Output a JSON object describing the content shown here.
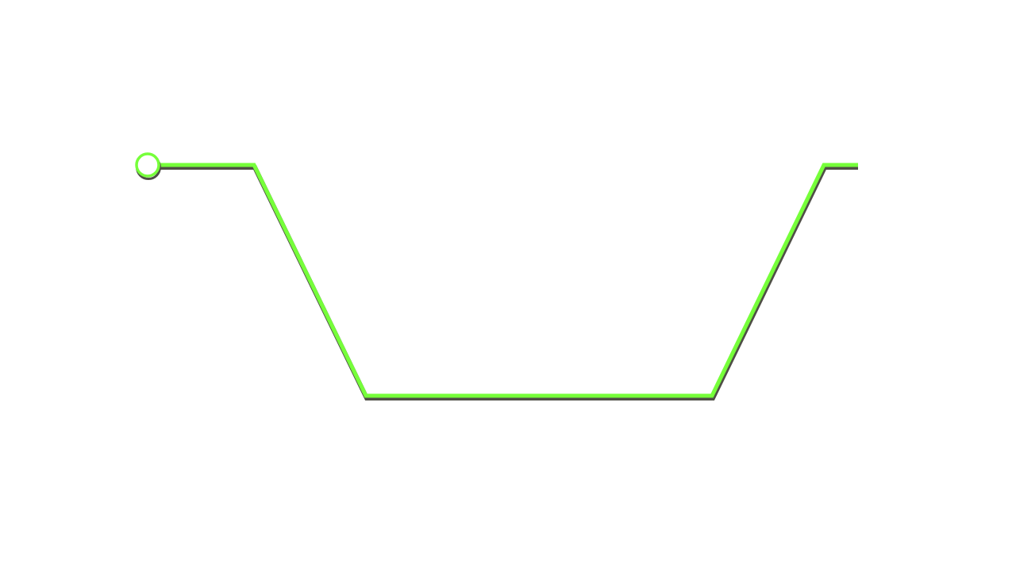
{
  "trace": {
    "line_color": "#76ff3a",
    "shadow_color": "#4f4f46",
    "start_marker": "hollow-circle",
    "marker_fill": "#ffffff"
  }
}
